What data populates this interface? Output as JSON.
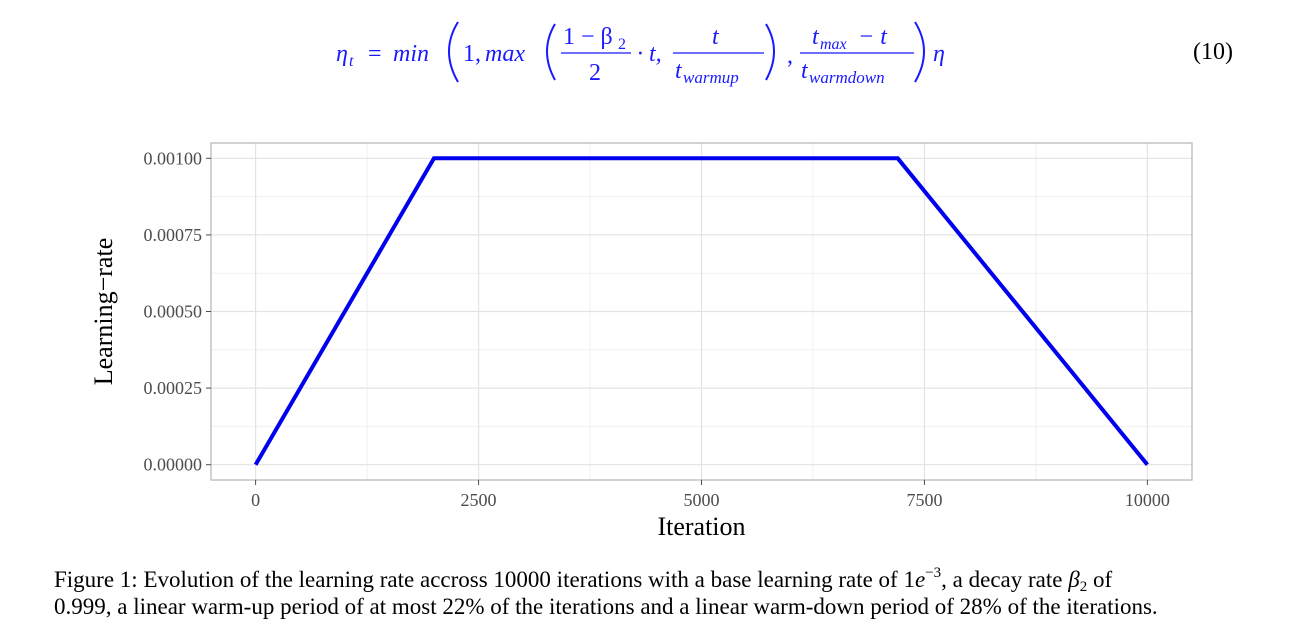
{
  "equation": {
    "lhs": "η",
    "lhs_sub": "t",
    "eq": "=",
    "min": "min",
    "one": "1,",
    "max": "max",
    "frac1_num": "1 − β",
    "frac1_num_sub": "2",
    "frac1_den": "2",
    "dot_t": "· t,",
    "frac2_num": "t",
    "frac2_den": "t",
    "frac2_den_sub": "warmup",
    "comma": ",",
    "frac3_num_a": "t",
    "frac3_num_sub": "max",
    "frac3_num_b": " − t",
    "frac3_den": "t",
    "frac3_den_sub": "warmdown",
    "eta": "η",
    "number": "(10)",
    "color": "#1a1aff"
  },
  "chart_data": {
    "type": "line",
    "x": [
      0,
      2000,
      7200,
      10000
    ],
    "y": [
      0.0,
      0.001,
      0.001,
      0.0
    ],
    "xlim": [
      -500,
      10500
    ],
    "ylim": [
      -5e-05,
      0.00105
    ],
    "xticks": [
      0,
      2500,
      5000,
      7500,
      10000
    ],
    "xtick_labels": [
      "0",
      "2500",
      "5000",
      "7500",
      "10000"
    ],
    "yticks": [
      0.0,
      0.00025,
      0.0005,
      0.00075,
      0.001
    ],
    "ytick_labels": [
      "0.00000",
      "0.00025",
      "0.00050",
      "0.00075",
      "0.00100"
    ],
    "xlabel": "Iteration",
    "ylabel": "Learning−rate",
    "line_color": "#0000ee",
    "grid": true
  },
  "caption": {
    "prefix": "Figure 1: Evolution of the learning rate accross 10000 iterations with a base learning rate of 1",
    "e": "e",
    "exp": "−3",
    "mid": ", a decay rate ",
    "beta": "β",
    "beta_sub": "2",
    "rest": " of",
    "line2": "0.999, a linear warm-up period of at most 22% of the iterations and a linear warm-down period of 28% of the iterations."
  }
}
